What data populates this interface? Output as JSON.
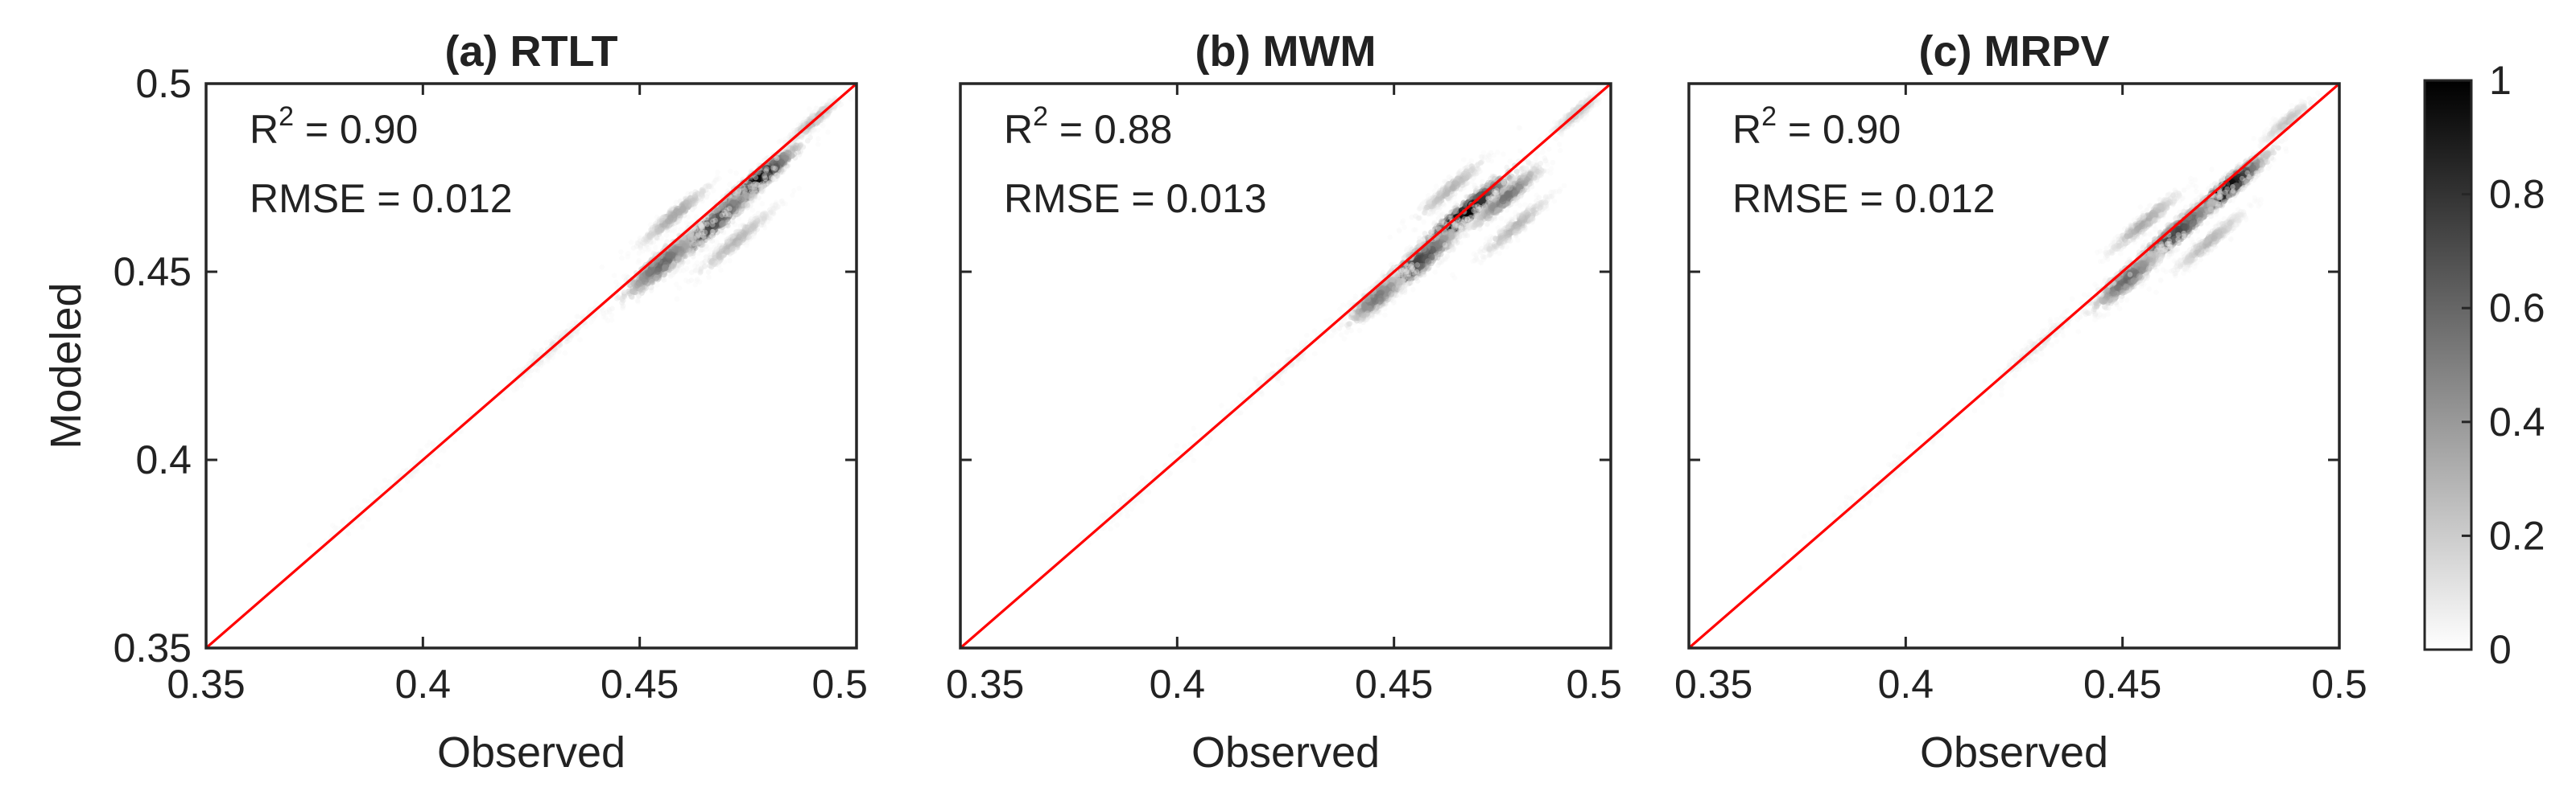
{
  "chart_data": [
    {
      "type": "heatmap",
      "title": "(a) RTLT",
      "xlabel": "Observed",
      "ylabel": "Modeled",
      "xlim": [
        0.35,
        0.5
      ],
      "ylim": [
        0.35,
        0.5
      ],
      "xticks": [
        "0.35",
        "0.4",
        "0.45",
        "0.5"
      ],
      "yticks": [
        "0.35",
        "0.4",
        "0.45",
        "0.5"
      ],
      "stats": {
        "r2_label": "R",
        "r2_sup": "2",
        "r2_value": " = 0.90",
        "rmse": "RMSE = 0.012"
      },
      "reference_line": {
        "color": "#ff0000",
        "from": [
          0.35,
          0.35
        ],
        "to": [
          0.5,
          0.5
        ]
      },
      "density_clusters": [
        {
          "x": 0.476,
          "y": 0.473,
          "spread_along": 0.018,
          "spread_across": 0.0026,
          "peak": 1.0
        },
        {
          "x": 0.466,
          "y": 0.462,
          "spread_along": 0.02,
          "spread_across": 0.0032,
          "peak": 0.75
        },
        {
          "x": 0.455,
          "y": 0.452,
          "spread_along": 0.016,
          "spread_across": 0.0035,
          "peak": 0.6
        },
        {
          "x": 0.458,
          "y": 0.465,
          "spread_along": 0.014,
          "spread_across": 0.0022,
          "peak": 0.35
        },
        {
          "x": 0.472,
          "y": 0.458,
          "spread_along": 0.016,
          "spread_across": 0.0022,
          "peak": 0.3
        },
        {
          "x": 0.49,
          "y": 0.49,
          "spread_along": 0.01,
          "spread_across": 0.0018,
          "peak": 0.3
        },
        {
          "x": 0.43,
          "y": 0.43,
          "spread_along": 0.02,
          "spread_across": 0.0022,
          "peak": 0.12
        },
        {
          "x": 0.395,
          "y": 0.395,
          "spread_along": 0.03,
          "spread_across": 0.0025,
          "peak": 0.05
        }
      ]
    },
    {
      "type": "heatmap",
      "title": "(b) MWM",
      "xlabel": "Observed",
      "ylabel": "",
      "xlim": [
        0.35,
        0.5
      ],
      "ylim": [
        0.35,
        0.5
      ],
      "xticks": [
        "0.35",
        "0.4",
        "0.45",
        "0.5"
      ],
      "yticks": [],
      "stats": {
        "r2_label": "R",
        "r2_sup": "2",
        "r2_value": " = 0.88",
        "rmse": "RMSE = 0.013"
      },
      "reference_line": {
        "color": "#ff0000",
        "from": [
          0.35,
          0.35
        ],
        "to": [
          0.5,
          0.5
        ]
      },
      "density_clusters": [
        {
          "x": 0.466,
          "y": 0.465,
          "spread_along": 0.02,
          "spread_across": 0.003,
          "peak": 1.0
        },
        {
          "x": 0.455,
          "y": 0.452,
          "spread_along": 0.018,
          "spread_across": 0.0035,
          "peak": 0.75
        },
        {
          "x": 0.446,
          "y": 0.443,
          "spread_along": 0.012,
          "spread_across": 0.003,
          "peak": 0.55
        },
        {
          "x": 0.476,
          "y": 0.47,
          "spread_along": 0.014,
          "spread_across": 0.0025,
          "peak": 0.55
        },
        {
          "x": 0.463,
          "y": 0.472,
          "spread_along": 0.014,
          "spread_across": 0.0022,
          "peak": 0.3
        },
        {
          "x": 0.478,
          "y": 0.462,
          "spread_along": 0.014,
          "spread_across": 0.0022,
          "peak": 0.3
        },
        {
          "x": 0.492,
          "y": 0.492,
          "spread_along": 0.01,
          "spread_across": 0.0018,
          "peak": 0.25
        },
        {
          "x": 0.425,
          "y": 0.425,
          "spread_along": 0.025,
          "spread_across": 0.0022,
          "peak": 0.08
        },
        {
          "x": 0.39,
          "y": 0.39,
          "spread_along": 0.025,
          "spread_across": 0.0022,
          "peak": 0.04
        }
      ]
    },
    {
      "type": "heatmap",
      "title": "(c) MRPV",
      "xlabel": "Observed",
      "ylabel": "",
      "xlim": [
        0.35,
        0.5
      ],
      "ylim": [
        0.35,
        0.5
      ],
      "xticks": [
        "0.35",
        "0.4",
        "0.45",
        "0.5"
      ],
      "yticks": [],
      "stats": {
        "r2_label": "R",
        "r2_sup": "2",
        "r2_value": " = 0.90",
        "rmse": "RMSE = 0.012"
      },
      "reference_line": {
        "color": "#ff0000",
        "from": [
          0.35,
          0.35
        ],
        "to": [
          0.5,
          0.5
        ]
      },
      "density_clusters": [
        {
          "x": 0.474,
          "y": 0.472,
          "spread_along": 0.016,
          "spread_across": 0.0026,
          "peak": 1.0
        },
        {
          "x": 0.462,
          "y": 0.46,
          "spread_along": 0.018,
          "spread_across": 0.003,
          "peak": 0.75
        },
        {
          "x": 0.451,
          "y": 0.448,
          "spread_along": 0.014,
          "spread_across": 0.0032,
          "peak": 0.6
        },
        {
          "x": 0.455,
          "y": 0.463,
          "spread_along": 0.014,
          "spread_across": 0.0022,
          "peak": 0.35
        },
        {
          "x": 0.47,
          "y": 0.458,
          "spread_along": 0.014,
          "spread_across": 0.0022,
          "peak": 0.3
        },
        {
          "x": 0.488,
          "y": 0.49,
          "spread_along": 0.01,
          "spread_across": 0.0018,
          "peak": 0.25
        },
        {
          "x": 0.43,
          "y": 0.43,
          "spread_along": 0.02,
          "spread_across": 0.0022,
          "peak": 0.12
        },
        {
          "x": 0.395,
          "y": 0.395,
          "spread_along": 0.03,
          "spread_across": 0.0025,
          "peak": 0.05
        }
      ]
    }
  ],
  "colorbar": {
    "ticks": [
      "0",
      "0.2",
      "0.4",
      "0.6",
      "0.8",
      "1"
    ],
    "range": [
      0,
      1
    ],
    "color_low": "#ffffff",
    "color_high": "#000000"
  }
}
